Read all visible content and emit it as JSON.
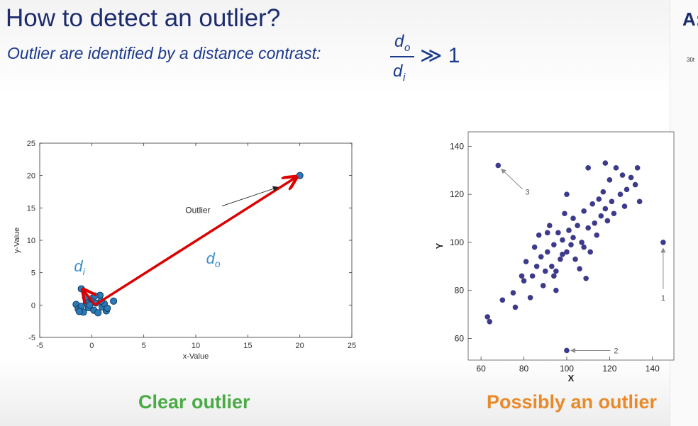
{
  "slide": {
    "title": "How to detect an outlier?",
    "subtitle": "Outlier are identified by a distance contrast:",
    "formula": {
      "numerator": "d",
      "numerator_sub": "o",
      "denominator": "d",
      "denominator_sub": "i",
      "relation": "≫ 1"
    },
    "side_logo": "A:",
    "side_text": "30t"
  },
  "captions": {
    "left": "Clear outlier",
    "right": "Possibly an outlier"
  },
  "colors": {
    "title": "#1c2b6e",
    "subtitle": "#1c3a8c",
    "left_caption": "#4aab45",
    "right_caption": "#e88a2a",
    "arrow": "#dd0000",
    "points_left": "#2a7ab8",
    "points_right": "#3d3a8c"
  },
  "chart_data": [
    {
      "type": "scatter",
      "xlabel": "x-Value",
      "ylabel": "y-Value",
      "xlim": [
        -5,
        25
      ],
      "ylim": [
        -5,
        25
      ],
      "xticks": [
        -5,
        0,
        5,
        10,
        15,
        20,
        25
      ],
      "yticks": [
        -5,
        0,
        5,
        10,
        15,
        20,
        25
      ],
      "points": [
        [
          -1.5,
          0.1
        ],
        [
          -1.3,
          -0.6
        ],
        [
          -1.0,
          -0.2
        ],
        [
          -0.8,
          -1.1
        ],
        [
          -0.5,
          0.4
        ],
        [
          -0.3,
          -0.4
        ],
        [
          0.0,
          1.0
        ],
        [
          0.2,
          -0.8
        ],
        [
          0.4,
          0.3
        ],
        [
          0.6,
          -1.2
        ],
        [
          0.8,
          1.5
        ],
        [
          1.0,
          -0.3
        ],
        [
          1.2,
          0.2
        ],
        [
          1.4,
          -0.9
        ],
        [
          -0.6,
          1.2
        ],
        [
          0.3,
          1.4
        ],
        [
          -1.2,
          -1.0
        ],
        [
          1.5,
          -0.5
        ],
        [
          -0.2,
          0.0
        ],
        [
          0.9,
          0.6
        ],
        [
          -1.0,
          2.5
        ],
        [
          2.1,
          0.6
        ],
        [
          20.0,
          20.0
        ]
      ],
      "annotations": [
        {
          "text": "Outlier",
          "x": 10.2,
          "y": 14.2
        },
        {
          "text": "d",
          "sub": "i",
          "x": -1.7,
          "y": 5.2
        },
        {
          "text": "d",
          "sub": "o",
          "x": 11.0,
          "y": 6.4
        }
      ]
    },
    {
      "type": "scatter",
      "xlabel": "X",
      "ylabel": "Y",
      "xlim": [
        54,
        150
      ],
      "ylim": [
        51,
        146
      ],
      "xticks": [
        60,
        80,
        100,
        120,
        140
      ],
      "yticks": [
        60,
        80,
        100,
        120,
        140
      ],
      "points": [
        [
          63,
          69
        ],
        [
          64,
          67
        ],
        [
          70,
          76
        ],
        [
          75,
          79
        ],
        [
          76,
          73
        ],
        [
          79,
          86
        ],
        [
          80,
          84
        ],
        [
          81,
          92
        ],
        [
          83,
          77
        ],
        [
          84,
          86
        ],
        [
          85,
          98
        ],
        [
          86,
          90
        ],
        [
          87,
          103
        ],
        [
          88,
          94
        ],
        [
          89,
          82
        ],
        [
          90,
          88
        ],
        [
          91,
          96
        ],
        [
          92,
          107
        ],
        [
          93,
          90
        ],
        [
          94,
          99
        ],
        [
          95,
          80
        ],
        [
          95,
          88
        ],
        [
          96,
          104
        ],
        [
          97,
          93
        ],
        [
          98,
          101
        ],
        [
          99,
          112
        ],
        [
          100,
          96
        ],
        [
          100,
          120
        ],
        [
          101,
          105
        ],
        [
          102,
          99
        ],
        [
          103,
          110
        ],
        [
          104,
          93
        ],
        [
          105,
          107
        ],
        [
          106,
          89
        ],
        [
          107,
          100
        ],
        [
          108,
          113
        ],
        [
          109,
          85
        ],
        [
          110,
          106
        ],
        [
          111,
          96
        ],
        [
          112,
          116
        ],
        [
          113,
          108
        ],
        [
          114,
          103
        ],
        [
          115,
          118
        ],
        [
          116,
          111
        ],
        [
          117,
          121
        ],
        [
          118,
          114
        ],
        [
          119,
          109
        ],
        [
          120,
          126
        ],
        [
          121,
          117
        ],
        [
          122,
          112
        ],
        [
          123,
          131
        ],
        [
          125,
          120
        ],
        [
          126,
          128
        ],
        [
          127,
          115
        ],
        [
          128,
          122
        ],
        [
          130,
          127
        ],
        [
          132,
          124
        ],
        [
          133,
          131
        ],
        [
          134,
          117
        ],
        [
          91,
          104
        ],
        [
          94,
          86
        ],
        [
          98,
          95
        ],
        [
          103,
          102
        ],
        [
          108,
          98
        ],
        [
          110,
          131
        ],
        [
          118,
          133
        ],
        [
          68,
          132
        ],
        [
          145,
          100
        ],
        [
          100,
          55
        ]
      ],
      "annotations": [
        {
          "text": "3",
          "x": 80,
          "y": 121
        },
        {
          "text": "1",
          "x": 145,
          "y": 77
        },
        {
          "text": "2",
          "x": 122,
          "y": 55
        }
      ]
    }
  ]
}
